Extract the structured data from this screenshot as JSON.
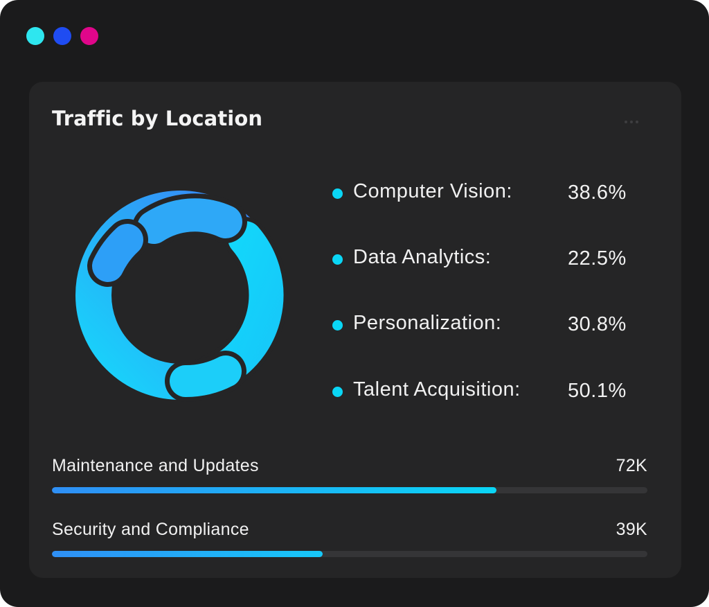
{
  "window": {
    "controls": [
      {
        "name": "cyan",
        "color": "#2ee6ef"
      },
      {
        "name": "blue",
        "color": "#1f4cf2"
      },
      {
        "name": "magenta",
        "color": "#e0068a"
      }
    ]
  },
  "card": {
    "title": "Traffic by Location",
    "more_icon": "more-horizontal-icon"
  },
  "colors": {
    "accent_cyan": "#0ad6f5",
    "accent_blue": "#2f8ff5"
  },
  "donut": {
    "segments": [
      {
        "label": "Computer Vision"
      },
      {
        "label": "Data Analytics"
      },
      {
        "label": "Personalization"
      },
      {
        "label": "Talent Acquisition"
      }
    ]
  },
  "legend": [
    {
      "label": "Computer Vision:",
      "value": "38.6%"
    },
    {
      "label": "Data Analytics:",
      "value": "22.5%"
    },
    {
      "label": "Personalization:",
      "value": "30.8%"
    },
    {
      "label": "Talent Acquisition:",
      "value": "50.1%"
    }
  ],
  "metrics": [
    {
      "label": "Maintenance and Updates",
      "value": "72K",
      "progress": 0.746
    },
    {
      "label": "Security and Compliance",
      "value": "39K",
      "progress": 0.455
    }
  ]
}
